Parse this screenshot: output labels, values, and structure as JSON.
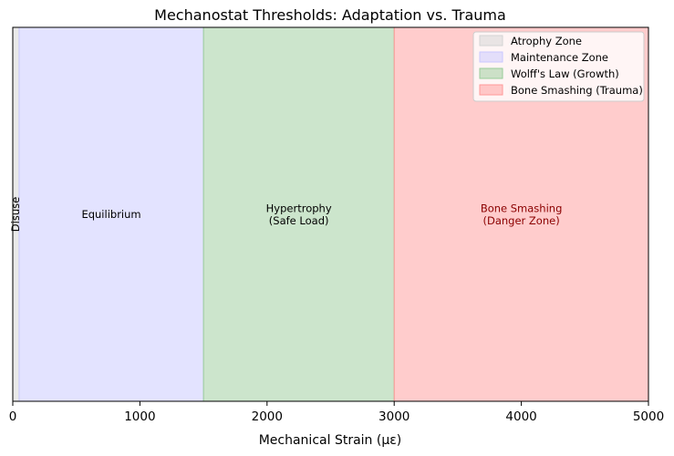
{
  "chart_data": {
    "type": "area",
    "title": "Mechanostat Thresholds: Adaptation vs. Trauma",
    "xlabel": "Mechanical Strain (με)",
    "xlim": [
      0,
      5000
    ],
    "x_ticks": [
      0,
      1000,
      2000,
      3000,
      4000,
      5000
    ],
    "y_ticks_shown": false,
    "grid": false,
    "legend_position": "top-right",
    "zones": [
      {
        "name": "Atrophy Zone",
        "start": 0,
        "end": 50,
        "color": "#d3d3d3",
        "opacity": 0.5
      },
      {
        "name": "Maintenance Zone",
        "start": 50,
        "end": 1500,
        "color": "#c8c8ff",
        "opacity": 0.5
      },
      {
        "name": "Wolff's Law (Growth)",
        "start": 1500,
        "end": 3000,
        "color": "#99cc99",
        "opacity": 0.5
      },
      {
        "name": "Bone Smashing (Trauma)",
        "start": 3000,
        "end": 5000,
        "color": "#ff9999",
        "opacity": 0.5
      }
    ],
    "annotations": [
      {
        "lines": [
          "Disuse"
        ],
        "x": 20,
        "rotated": true,
        "color": "#000000"
      },
      {
        "lines": [
          "Equilibrium"
        ],
        "x": 775,
        "rotated": false,
        "color": "#000000"
      },
      {
        "lines": [
          "Hypertrophy",
          "(Safe Load)"
        ],
        "x": 2250,
        "rotated": false,
        "color": "#000000"
      },
      {
        "lines": [
          "Bone Smashing",
          "(Danger Zone)"
        ],
        "x": 4000,
        "rotated": false,
        "color": "#8b0000"
      }
    ]
  }
}
